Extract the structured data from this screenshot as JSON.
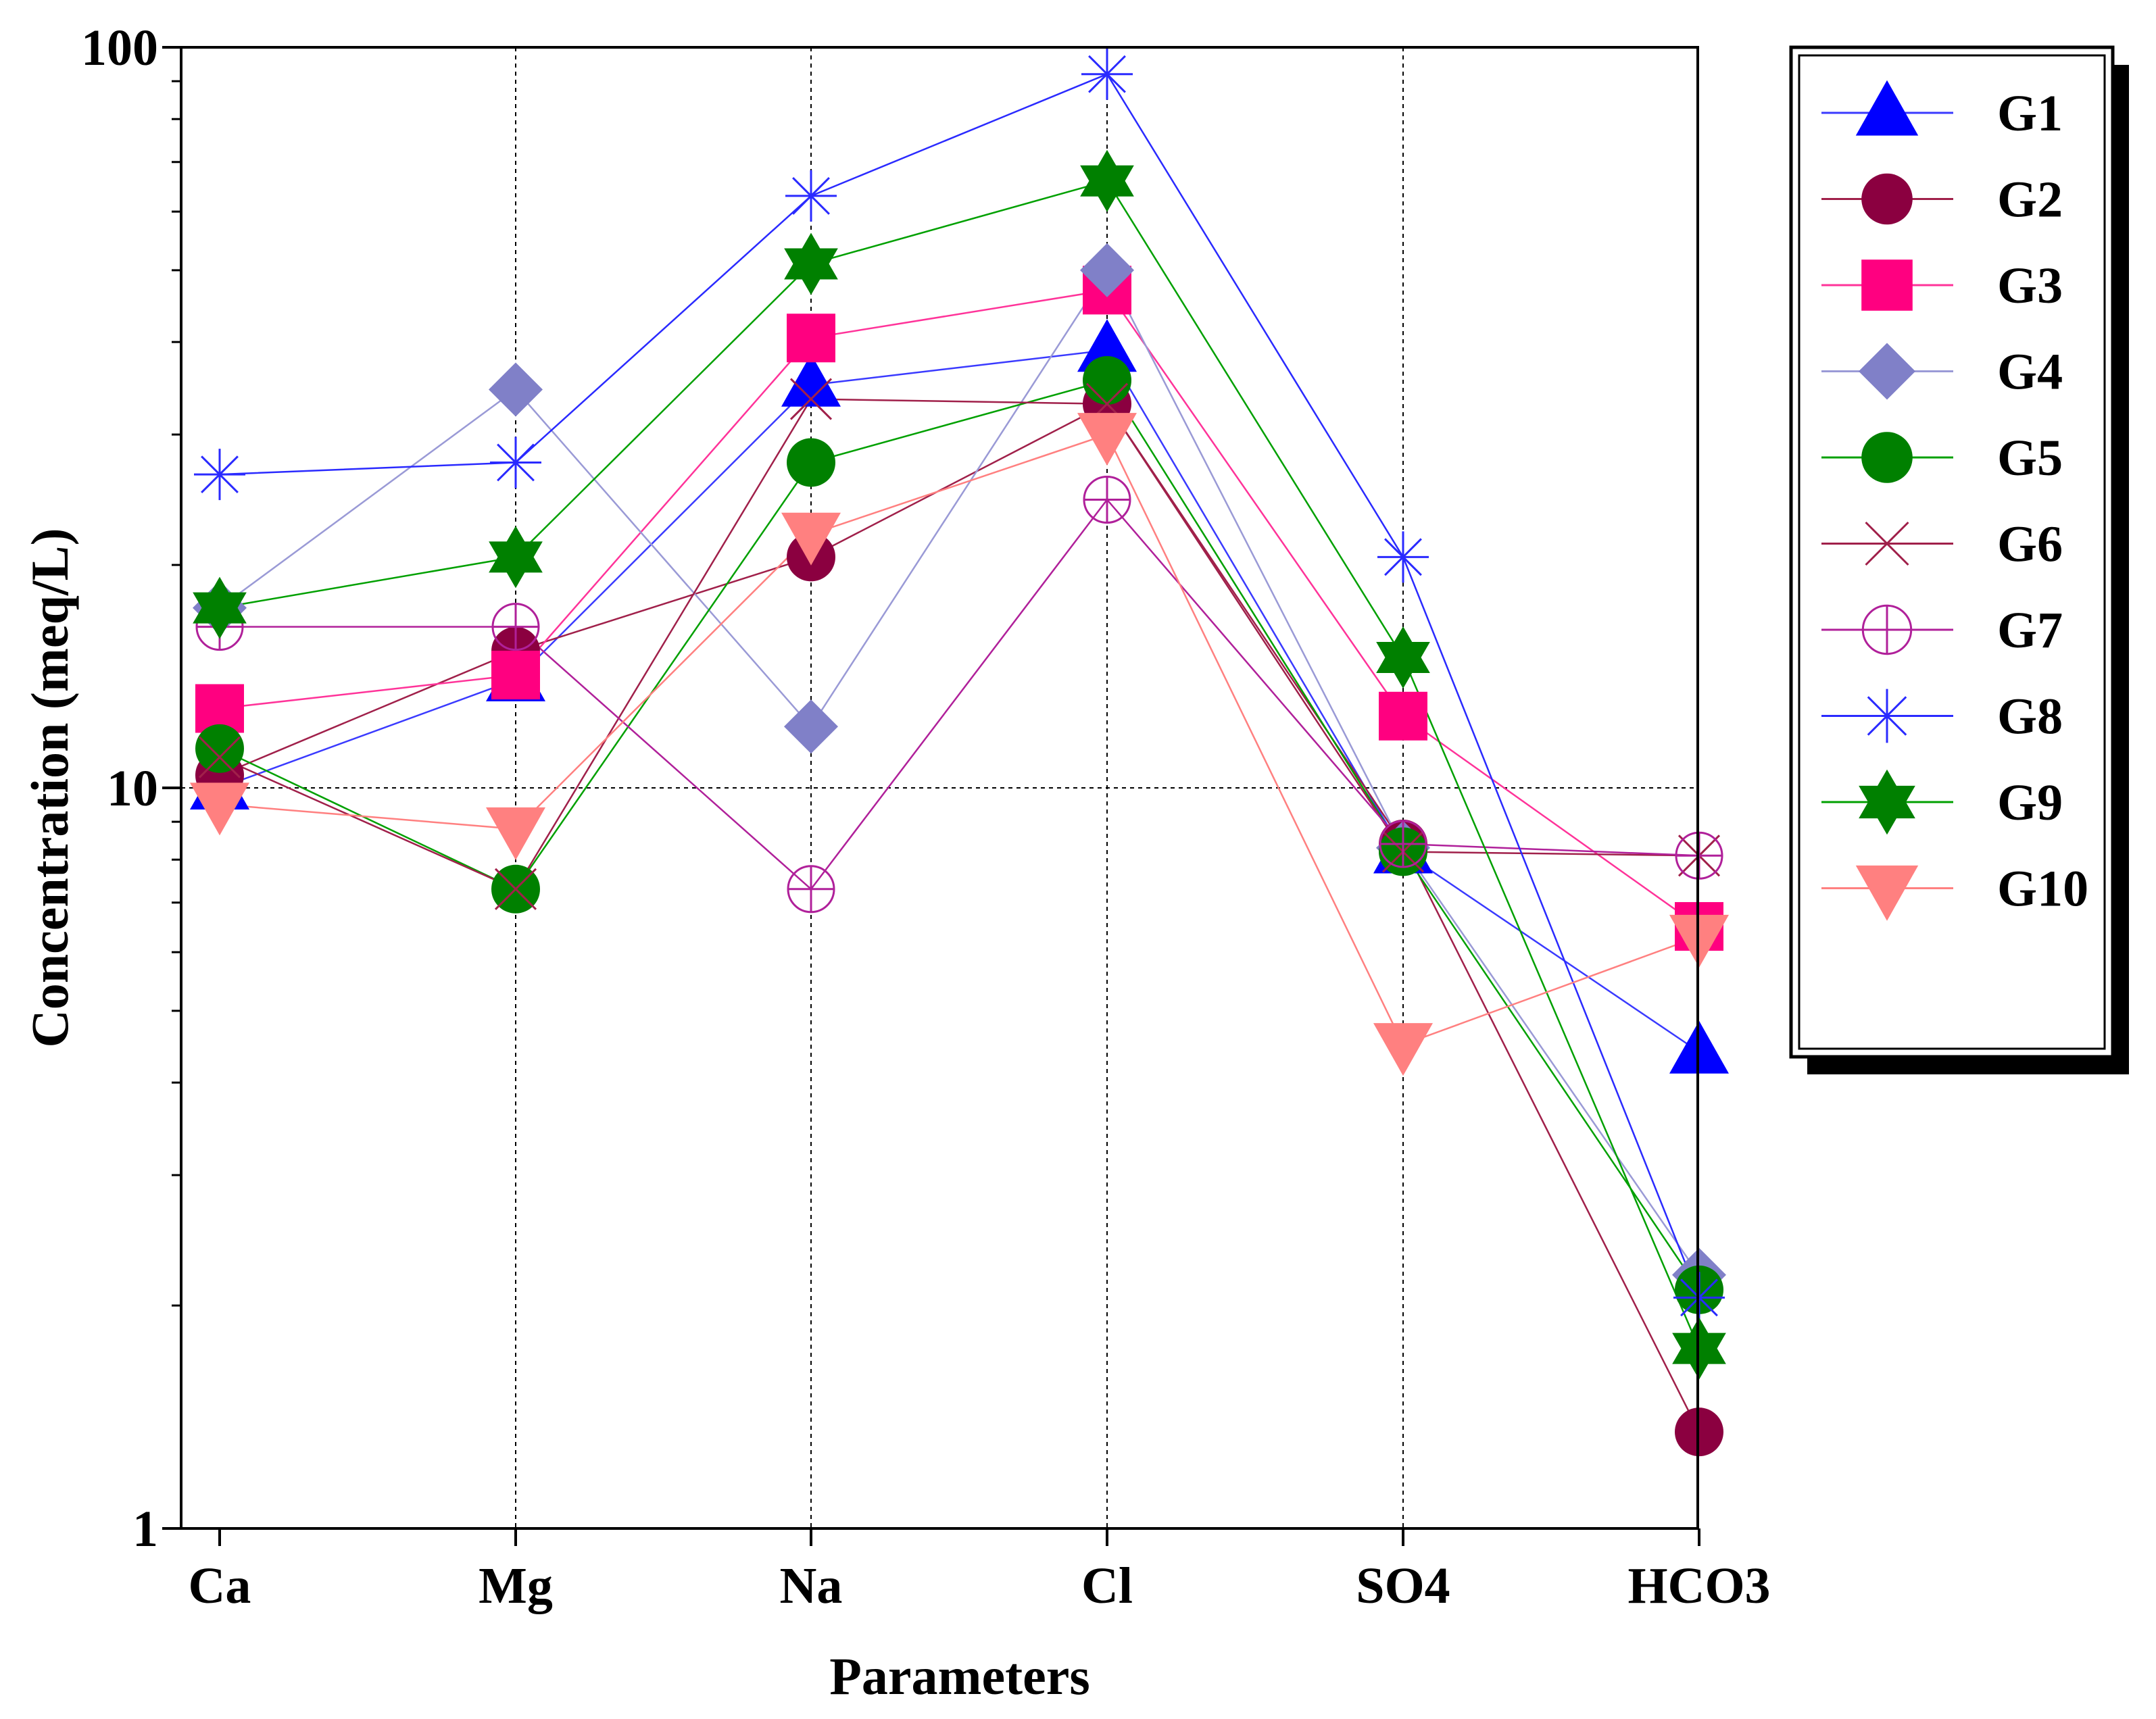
{
  "chart_data": {
    "type": "line",
    "title": "",
    "xlabel": "Parameters",
    "ylabel": "Concentration (meq/L)",
    "yscale": "log",
    "ylim": [
      1,
      100
    ],
    "yticks": [
      "1",
      "10",
      "100"
    ],
    "categories": [
      "Ca",
      "Mg",
      "Na",
      "Cl",
      "SO4",
      "HCO3"
    ],
    "grid": "dotted vertical at categories and horizontal at 10",
    "legend_position": "right",
    "series": [
      {
        "name": "G1",
        "marker": "triangle-up",
        "color": "#0000ff",
        "line_color": "#3a3aff",
        "values": [
          10.0,
          14.0,
          35.0,
          39.0,
          8.2,
          4.4
        ]
      },
      {
        "name": "G2",
        "marker": "circle",
        "color": "#8b0040",
        "line_color": "#a0204a",
        "values": [
          10.4,
          15.3,
          20.5,
          33.0,
          8.4,
          1.35
        ]
      },
      {
        "name": "G3",
        "marker": "square",
        "color": "#ff0080",
        "line_color": "#ff3399",
        "values": [
          12.8,
          14.2,
          40.5,
          47.0,
          12.5,
          6.5
        ]
      },
      {
        "name": "G4",
        "marker": "diamond",
        "color": "#8080c8",
        "line_color": "#9a9ad6",
        "values": [
          17.5,
          34.5,
          12.1,
          50.0,
          8.3,
          2.2
        ]
      },
      {
        "name": "G5",
        "marker": "circle",
        "color": "#008000",
        "line_color": "#00a000",
        "values": [
          11.3,
          7.3,
          27.5,
          35.5,
          8.2,
          2.1
        ]
      },
      {
        "name": "G6",
        "marker": "x",
        "color": "#a0204a",
        "line_color": "#a0204a",
        "values": [
          11.0,
          7.3,
          33.5,
          33.0,
          8.2,
          8.1
        ]
      },
      {
        "name": "G7",
        "marker": "circle-plus",
        "color": "#b0209a",
        "line_color": "#b0209a",
        "values": null,
        "values_list": [
          16.5,
          16.5,
          7.3,
          24.5,
          8.4,
          8.1
        ]
      },
      {
        "name": "G8",
        "marker": "asterisk",
        "color": "#2a2aff",
        "line_color": "#2a2aff",
        "values": [
          26.5,
          27.5,
          63.0,
          92.0,
          20.5,
          2.05
        ]
      },
      {
        "name": "G9",
        "marker": "hexagram",
        "color": "#008000",
        "line_color": "#00a000",
        "values": [
          17.5,
          20.5,
          51.0,
          66.0,
          15.0,
          1.75
        ]
      },
      {
        "name": "G10",
        "marker": "triangle-down",
        "color": "#ff8080",
        "line_color": "#ff8080",
        "values": [
          9.5,
          8.8,
          22.0,
          30.0,
          4.5,
          6.3
        ]
      }
    ]
  }
}
